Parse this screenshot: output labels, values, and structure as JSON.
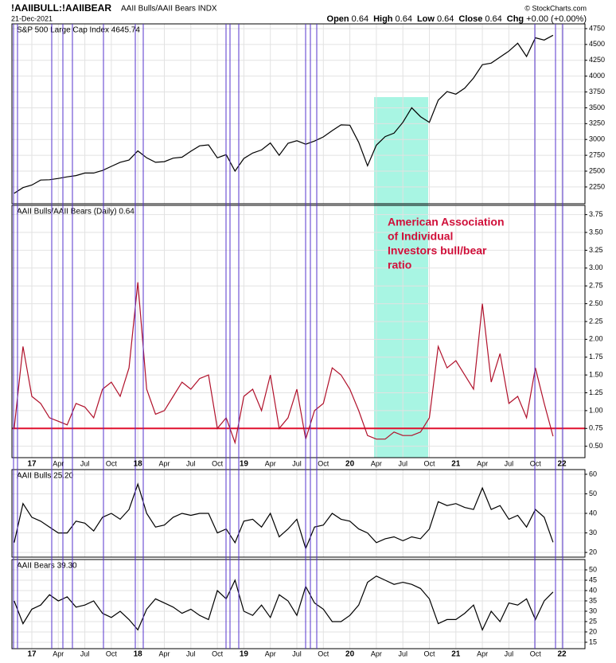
{
  "header": {
    "symbol": "!AAIIBULL:!AAIIBEAR",
    "name": "AAII Bulls/AAII Bears INDX",
    "date": "21-Dec-2021",
    "source": "© StockCharts.com",
    "quote": [
      {
        "label": "Open",
        "value": "0.64"
      },
      {
        "label": "High",
        "value": "0.64"
      },
      {
        "label": "Low",
        "value": "0.64"
      },
      {
        "label": "Close",
        "value": "0.64"
      },
      {
        "label": "Chg",
        "value": "+0.00 (+0.00%)"
      }
    ]
  },
  "chart_data": {
    "type": "line",
    "categories": [
      null,
      null,
      "17",
      null,
      null,
      "Apr",
      null,
      null,
      "Jul",
      null,
      null,
      "Oct",
      null,
      null,
      "18",
      null,
      null,
      "Apr",
      null,
      null,
      "Jul",
      null,
      null,
      "Oct",
      null,
      null,
      "19",
      null,
      null,
      "Apr",
      null,
      null,
      "Jul",
      null,
      null,
      "Oct",
      null,
      null,
      "20",
      null,
      null,
      "Apr",
      null,
      null,
      "Jul",
      null,
      null,
      "Oct",
      null,
      null,
      "21",
      null,
      null,
      "Apr",
      null,
      null,
      "Jul",
      null,
      null,
      "Oct",
      null,
      null,
      "22"
    ],
    "panels": [
      {
        "title": "S&P 500 Large Cap Index 4645.74",
        "ylim": [
          1985,
          4825
        ],
        "yticks": [
          2250,
          2500,
          2750,
          3000,
          3250,
          3500,
          3750,
          4000,
          4250,
          4500,
          4750
        ],
        "series": [
          {
            "color": "#000000",
            "values": [
              2150,
              2240,
              2280,
              2360,
              2365,
              2385,
              2410,
              2430,
              2470,
              2470,
              2510,
              2575,
              2640,
              2675,
              2820,
              2710,
              2640,
              2650,
              2705,
              2720,
              2815,
              2900,
              2915,
              2710,
              2760,
              2500,
              2700,
              2785,
              2835,
              2945,
              2750,
              2940,
              2980,
              2925,
              2975,
              3040,
              3140,
              3230,
              3225,
              2955,
              2585,
              2910,
              3045,
              3100,
              3270,
              3500,
              3360,
              3270,
              3620,
              3755,
              3715,
              3810,
              3970,
              4180,
              4205,
              4300,
              4395,
              4520,
              4310,
              4605,
              4570,
              4645.74,
              null
            ]
          }
        ]
      },
      {
        "title": "AAII Bulls/AAII Bears (Daily) 0.64",
        "ylim": [
          0.34,
          3.88
        ],
        "yticks": [
          {
            "value": 0.5,
            "label": "0.50"
          },
          0.75,
          {
            "value": 1,
            "label": "1.00"
          },
          1.25,
          {
            "value": 1.5,
            "label": "1.50"
          },
          1.75,
          {
            "value": 2,
            "label": "2.00"
          },
          2.25,
          {
            "value": 2.5,
            "label": "2.50"
          },
          2.75,
          {
            "value": 3,
            "label": "3.00"
          },
          3.25,
          {
            "value": 3.5,
            "label": "3.50"
          },
          3.75
        ],
        "reference_line": {
          "value": 0.75,
          "color": "#e0102e"
        },
        "annotation": [
          "American Association",
          "of Individual",
          "Investors bull/bear",
          "ratio"
        ],
        "series": [
          {
            "color": "#b0102a",
            "values": [
              0.75,
              1.9,
              1.2,
              1.1,
              0.9,
              0.85,
              0.8,
              1.1,
              1.05,
              0.9,
              1.3,
              1.4,
              1.2,
              1.6,
              2.8,
              1.3,
              0.95,
              1.0,
              1.2,
              1.4,
              1.3,
              1.45,
              1.5,
              0.75,
              0.9,
              0.55,
              1.2,
              1.3,
              1.0,
              1.5,
              0.75,
              0.9,
              1.3,
              0.6,
              1.0,
              1.1,
              1.6,
              1.5,
              1.3,
              1.0,
              0.65,
              0.6,
              0.6,
              0.7,
              0.65,
              0.65,
              0.7,
              0.9,
              1.9,
              1.6,
              1.7,
              1.5,
              1.3,
              2.5,
              1.4,
              1.8,
              1.1,
              1.2,
              0.9,
              1.6,
              1.1,
              0.64,
              null
            ]
          }
        ]
      },
      {
        "title": "AAII Bulls 25.20",
        "ylim": [
          17.6,
          62.4
        ],
        "yticks": [
          20,
          30,
          40,
          50,
          60
        ],
        "series": [
          {
            "color": "#000000",
            "values": [
              25,
              45,
              38,
              36,
              33,
              30,
              30,
              36,
              35,
              31,
              38,
              40,
              37,
              42,
              55,
              40,
              33,
              34,
              38,
              40,
              39,
              40,
              40,
              30,
              32,
              25,
              36,
              37,
              33,
              40,
              28,
              32,
              37,
              22,
              33,
              34,
              40,
              37,
              36,
              32,
              30,
              25,
              27,
              28,
              26,
              28,
              27,
              32,
              46,
              44,
              45,
              43,
              42,
              53,
              42,
              44,
              37,
              39,
              33,
              42,
              38,
              25.2,
              null
            ]
          }
        ]
      },
      {
        "title": "AAII Bears 39.30",
        "ylim": [
          11.9,
          55
        ],
        "yticks": [
          15,
          20,
          25,
          30,
          35,
          40,
          45,
          50
        ],
        "series": [
          {
            "color": "#000000",
            "values": [
              35,
              24,
              31,
              33,
              38,
              35,
              37,
              32,
              33,
              35,
              29,
              27,
              30,
              26,
              21,
              31,
              36,
              34,
              32,
              29,
              31,
              28,
              26,
              40,
              36,
              45,
              30,
              28,
              33,
              27,
              38,
              35,
              28,
              42,
              34,
              31,
              25,
              25,
              28,
              33,
              44,
              47,
              45,
              43,
              44,
              43,
              41,
              36,
              24,
              26,
              26,
              29,
              33,
              21,
              30,
              25,
              34,
              33,
              36,
              26,
              35,
              39.3,
              null
            ]
          }
        ]
      }
    ]
  }
}
